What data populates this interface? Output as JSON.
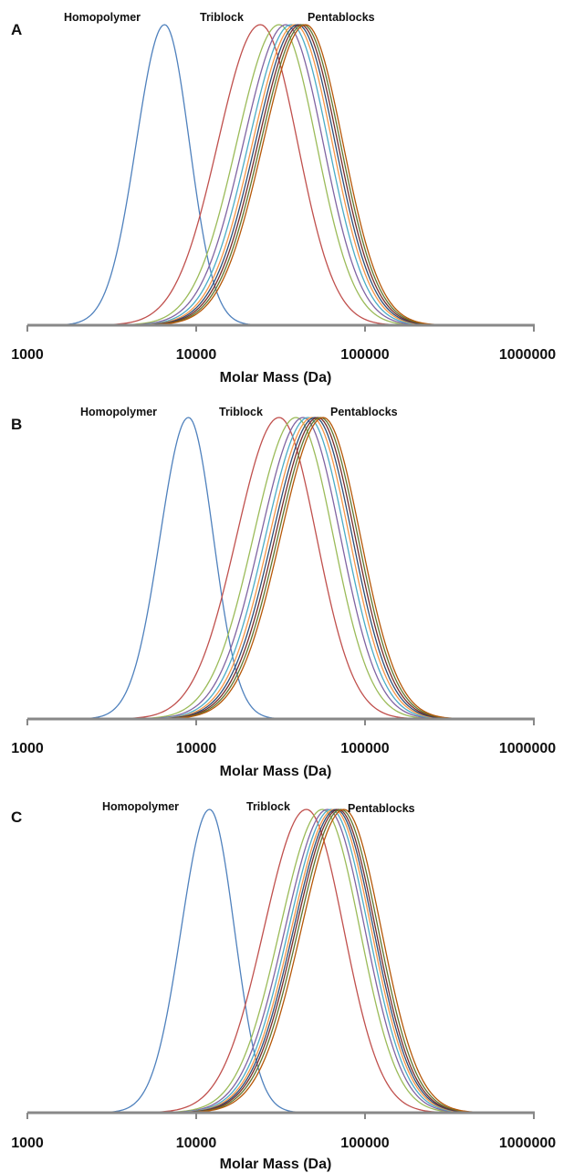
{
  "chart_data": [
    {
      "type": "line",
      "panel": "A",
      "xlabel": "Molar Mass (Da)",
      "xscale": "log",
      "xlim": [
        1000,
        1000000
      ],
      "xticks": [
        "1000",
        "10000",
        "100000",
        "1000000"
      ],
      "annotations": [
        "Homopolymer",
        "Triblock",
        "Pentablocks"
      ],
      "series": [
        {
          "peak_Mp": 6500,
          "color": "#4f81bd"
        },
        {
          "peak_Mp": 24000,
          "color": "#c0504d"
        },
        {
          "peak_Mp": 31000,
          "color": "#9bbb59"
        },
        {
          "peak_Mp": 34000,
          "color": "#8064a2"
        },
        {
          "peak_Mp": 36500,
          "color": "#4bacc6"
        },
        {
          "peak_Mp": 38500,
          "color": "#f79646"
        },
        {
          "peak_Mp": 40000,
          "color": "#2c4d75"
        },
        {
          "peak_Mp": 41500,
          "color": "#772c2a"
        },
        {
          "peak_Mp": 43000,
          "color": "#5f7530"
        },
        {
          "peak_Mp": 44500,
          "color": "#b65708"
        }
      ]
    },
    {
      "type": "line",
      "panel": "B",
      "xlabel": "Molar Mass (Da)",
      "xscale": "log",
      "xlim": [
        1000,
        1000000
      ],
      "xticks": [
        "1000",
        "10000",
        "100000",
        "1000000"
      ],
      "annotations": [
        "Homopolymer",
        "Triblock",
        "Pentablocks"
      ],
      "series": [
        {
          "peak_Mp": 9000,
          "color": "#4f81bd"
        },
        {
          "peak_Mp": 31000,
          "color": "#c0504d"
        },
        {
          "peak_Mp": 39000,
          "color": "#9bbb59"
        },
        {
          "peak_Mp": 43000,
          "color": "#8064a2"
        },
        {
          "peak_Mp": 46000,
          "color": "#4bacc6"
        },
        {
          "peak_Mp": 48500,
          "color": "#f79646"
        },
        {
          "peak_Mp": 50500,
          "color": "#2c4d75"
        },
        {
          "peak_Mp": 52500,
          "color": "#772c2a"
        },
        {
          "peak_Mp": 54500,
          "color": "#5f7530"
        },
        {
          "peak_Mp": 56500,
          "color": "#b65708"
        }
      ]
    },
    {
      "type": "line",
      "panel": "C",
      "xlabel": "Molar Mass (Da)",
      "xscale": "log",
      "xlim": [
        1000,
        1000000
      ],
      "xticks": [
        "1000",
        "10000",
        "100000",
        "1000000"
      ],
      "annotations": [
        "Homopolymer",
        "Triblock",
        "Pentablocks"
      ],
      "series": [
        {
          "peak_Mp": 12000,
          "color": "#4f81bd"
        },
        {
          "peak_Mp": 45000,
          "color": "#c0504d"
        },
        {
          "peak_Mp": 56000,
          "color": "#9bbb59"
        },
        {
          "peak_Mp": 60000,
          "color": "#8064a2"
        },
        {
          "peak_Mp": 63000,
          "color": "#4bacc6"
        },
        {
          "peak_Mp": 65500,
          "color": "#f79646"
        },
        {
          "peak_Mp": 67500,
          "color": "#2c4d75"
        },
        {
          "peak_Mp": 69500,
          "color": "#772c2a"
        },
        {
          "peak_Mp": 72000,
          "color": "#5f7530"
        },
        {
          "peak_Mp": 75000,
          "color": "#b65708"
        }
      ]
    }
  ]
}
